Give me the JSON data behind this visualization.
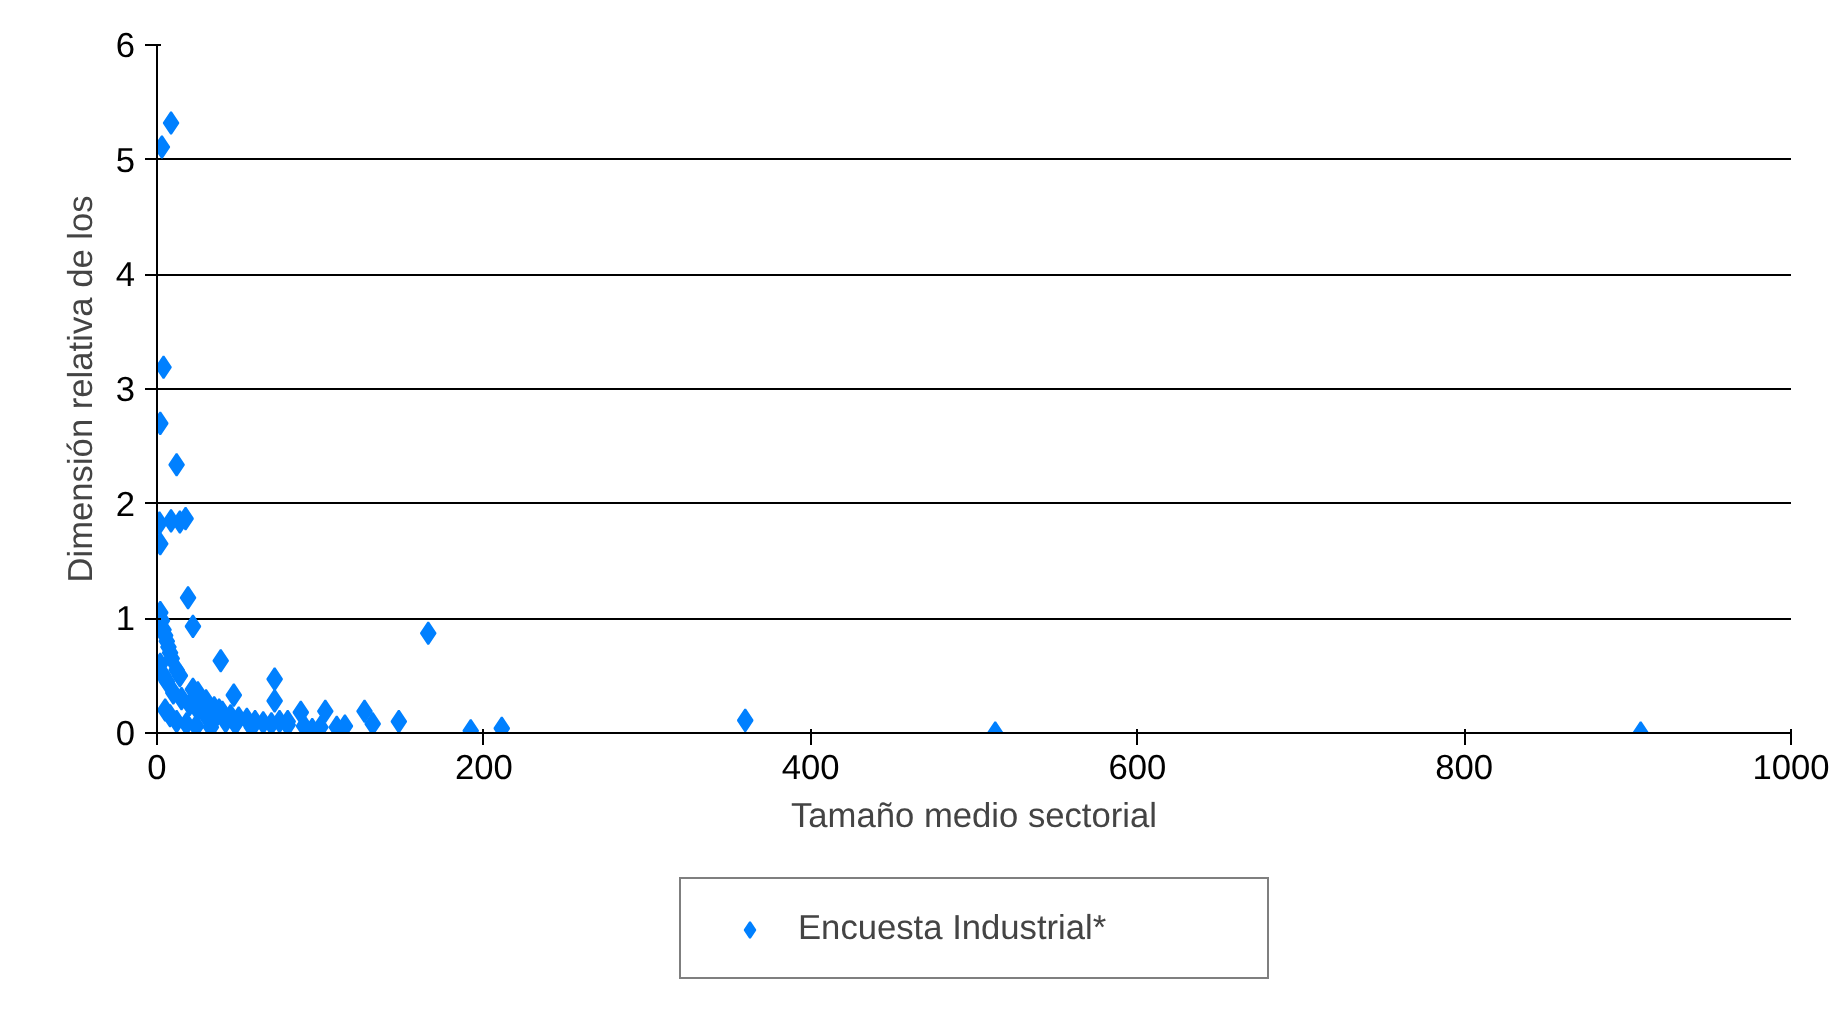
{
  "chart_data": {
    "type": "scatter",
    "ylabel": "Dimensión relativa de los",
    "xlabel": "Tamaño medio sectorial",
    "xlim": [
      0,
      1000
    ],
    "xticks": [
      0,
      200,
      400,
      600,
      800,
      1000
    ],
    "ylim": [
      0,
      6
    ],
    "yticks": [
      0,
      1,
      2,
      3,
      4,
      5,
      6
    ],
    "grid": "y",
    "legend": "bottom",
    "marker": "diamond",
    "series": [
      {
        "name": "Encuesta Industrial*",
        "color": "#0080ff",
        "x": [
          3,
          8.6,
          4,
          2,
          12,
          1.5,
          8.6,
          17.5,
          14,
          2,
          19,
          22,
          166,
          39,
          72,
          72,
          88,
          103,
          127,
          148,
          192,
          211,
          47,
          115,
          132,
          360,
          513,
          908,
          2,
          3,
          4,
          5,
          6,
          7,
          8,
          9,
          12,
          14,
          22,
          25,
          30,
          35,
          38,
          40,
          45,
          50,
          55,
          60,
          65,
          70,
          75,
          80,
          90,
          100,
          110,
          2,
          4,
          6,
          10,
          15,
          20,
          25,
          30,
          35,
          42,
          48,
          58,
          80,
          95,
          5,
          8,
          12,
          18,
          24,
          33
        ],
        "values": [
          5.11,
          5.32,
          3.19,
          2.7,
          2.34,
          1.83,
          1.85,
          1.87,
          1.84,
          1.65,
          1.18,
          0.93,
          0.87,
          0.63,
          0.47,
          0.28,
          0.18,
          0.19,
          0.19,
          0.1,
          0.02,
          0.04,
          0.33,
          0.06,
          0.08,
          0.11,
          0,
          0,
          1.05,
          0.98,
          0.9,
          0.85,
          0.8,
          0.75,
          0.7,
          0.65,
          0.55,
          0.5,
          0.38,
          0.35,
          0.28,
          0.22,
          0.2,
          0.18,
          0.15,
          0.13,
          0.12,
          0.1,
          0.09,
          0.08,
          0.1,
          0.07,
          0.06,
          0.05,
          0.05,
          0.6,
          0.5,
          0.45,
          0.35,
          0.3,
          0.25,
          0.2,
          0.15,
          0.12,
          0.1,
          0.08,
          0.05,
          0.1,
          0.03,
          0.2,
          0.15,
          0.1,
          0.08,
          0.06,
          0.05
        ]
      }
    ]
  }
}
